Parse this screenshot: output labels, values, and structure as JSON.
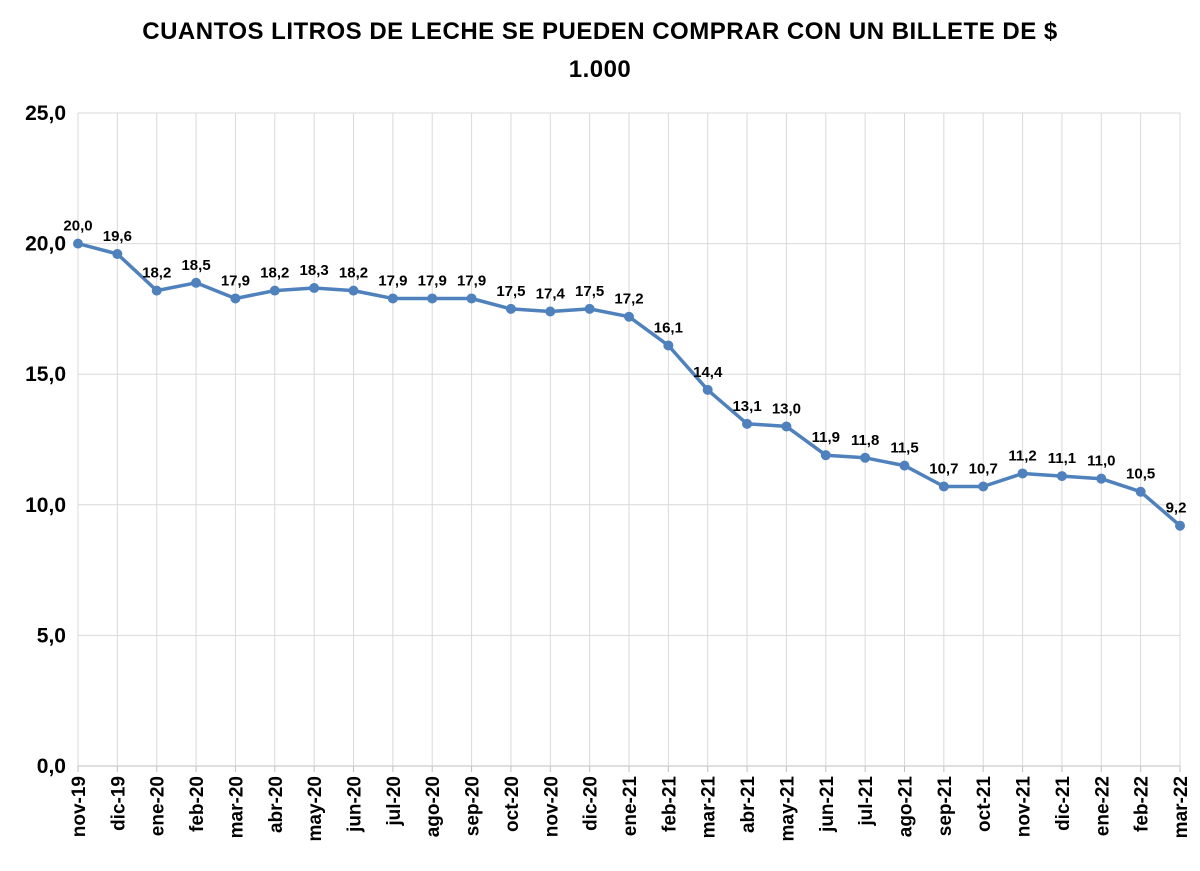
{
  "chart_data": {
    "type": "line",
    "title": "CUANTOS LITROS DE LECHE SE PUEDEN COMPRAR CON UN BILLETE DE $",
    "subtitle": "1.000",
    "xlabel": "",
    "ylabel": "",
    "ylim": [
      0,
      25
    ],
    "yticks": [
      "0,0",
      "5,0",
      "10,0",
      "15,0",
      "20,0",
      "25,0"
    ],
    "grid": true,
    "legend": "none",
    "line_color": "#4F81BD",
    "categories": [
      "nov-19",
      "dic-19",
      "ene-20",
      "feb-20",
      "mar-20",
      "abr-20",
      "may-20",
      "jun-20",
      "jul-20",
      "ago-20",
      "sep-20",
      "oct-20",
      "nov-20",
      "dic-20",
      "ene-21",
      "feb-21",
      "mar-21",
      "abr-21",
      "may-21",
      "jun-21",
      "jul-21",
      "ago-21",
      "sep-21",
      "oct-21",
      "nov-21",
      "dic-21",
      "ene-22",
      "feb-22",
      "mar-22"
    ],
    "values": [
      20.0,
      19.6,
      18.2,
      18.5,
      17.9,
      18.2,
      18.3,
      18.2,
      17.9,
      17.9,
      17.9,
      17.5,
      17.4,
      17.5,
      17.2,
      16.1,
      14.4,
      13.1,
      13.0,
      11.9,
      11.8,
      11.5,
      10.7,
      10.7,
      11.2,
      11.1,
      11.0,
      10.5,
      9.2
    ],
    "data_labels": [
      "20,0",
      "19,6",
      "18,2",
      "18,5",
      "17,9",
      "18,2",
      "18,3",
      "18,2",
      "17,9",
      "17,9",
      "17,9",
      "17,5",
      "17,4",
      "17,5",
      "17,2",
      "16,1",
      "14,4",
      "13,1",
      "13,0",
      "11,9",
      "11,8",
      "11,5",
      "10,7",
      "10,7",
      "11,2",
      "11,1",
      "11,0",
      "10,5",
      "9,2"
    ]
  }
}
